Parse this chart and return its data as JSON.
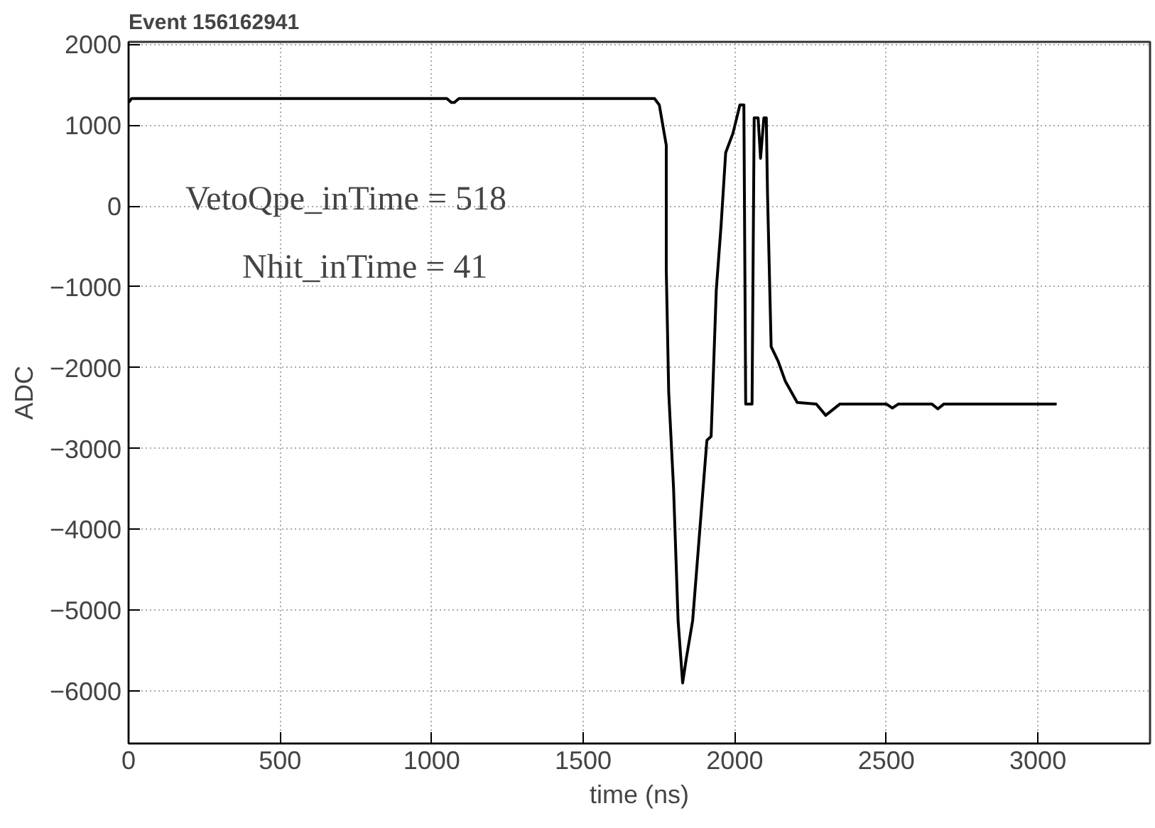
{
  "chart_data": {
    "type": "line",
    "title": "Event 156162941",
    "xlabel": "time (ns)",
    "ylabel": "ADC",
    "x": [
      0,
      10,
      1050,
      1065,
      1075,
      1090,
      1735,
      1751,
      1774,
      1774,
      1782,
      1798,
      1813,
      1828,
      1840,
      1861,
      1908,
      1922,
      1939,
      1955,
      1970,
      1994,
      2017,
      2030,
      2033,
      2036,
      2057,
      2064,
      2077,
      2085,
      2096,
      2104,
      2108,
      2120,
      2143,
      2167,
      2206,
      2269,
      2300,
      2347,
      2500,
      2520,
      2540,
      2650,
      2670,
      2690,
      3062
    ],
    "series": [
      {
        "color": "#000000",
        "values": [
          1280,
          1330,
          1330,
          1280,
          1280,
          1330,
          1330,
          1250,
          750,
          -790,
          -2300,
          -3490,
          -5130,
          -5900,
          -5600,
          -5130,
          -2900,
          -2850,
          -1040,
          -230,
          660,
          900,
          1250,
          1250,
          -600,
          -2450,
          -2450,
          1090,
          1090,
          590,
          1090,
          1090,
          150,
          -1740,
          -1920,
          -2170,
          -2430,
          -2450,
          -2590,
          -2450,
          -2450,
          -2500,
          -2450,
          -2450,
          -2510,
          -2450,
          -2450
        ]
      }
    ],
    "xlim": [
      0,
      3370
    ],
    "ylim": [
      -6650,
      2030
    ],
    "xticks": [
      0,
      500,
      1000,
      1500,
      2000,
      2500,
      3000
    ],
    "yticks": [
      -6000,
      -5000,
      -4000,
      -3000,
      -2000,
      -1000,
      0,
      1000,
      2000
    ],
    "grid": true,
    "line_style": "solid",
    "marker": "none",
    "annotations": [
      "VetoQpe_inTime = 518",
      "Nhit_inTime =  41"
    ]
  }
}
